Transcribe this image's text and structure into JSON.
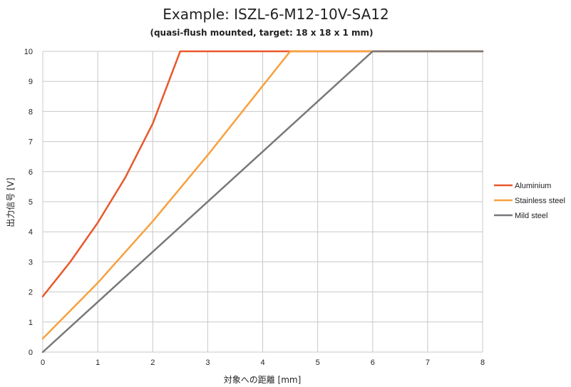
{
  "chart_data": {
    "type": "line",
    "title": "Example: ISZL-6-M12-10V-SA12",
    "subtitle": "(quasi-flush mounted, target: 18 x 18 x 1 mm)",
    "xlabel": "対象への距離 [mm]",
    "ylabel": "出力信号 [V]",
    "xlim": [
      0,
      8
    ],
    "ylim": [
      0,
      10
    ],
    "xticks": [
      "0",
      "1",
      "2",
      "3",
      "4",
      "5",
      "6",
      "7",
      "8"
    ],
    "yticks": [
      "0",
      "1",
      "2",
      "3",
      "4",
      "5",
      "6",
      "7",
      "8",
      "9",
      "10"
    ],
    "grid": true,
    "legend_position": "right",
    "series": [
      {
        "name": "Aluminium",
        "color": "#e8582c",
        "x": [
          0,
          0.5,
          1,
          1.5,
          2,
          2.5,
          8
        ],
        "y": [
          1.85,
          3.0,
          4.3,
          5.8,
          7.6,
          10.0,
          10.0
        ]
      },
      {
        "name": "Stainless steel",
        "color": "#f7a03c",
        "x": [
          0,
          1,
          2,
          3,
          4,
          4.5,
          8
        ],
        "y": [
          0.45,
          2.3,
          4.35,
          6.55,
          8.85,
          10.0,
          10.0
        ]
      },
      {
        "name": "Mild steel",
        "color": "#77787b",
        "x": [
          0,
          6,
          8
        ],
        "y": [
          0.0,
          10.0,
          10.0
        ]
      }
    ]
  }
}
